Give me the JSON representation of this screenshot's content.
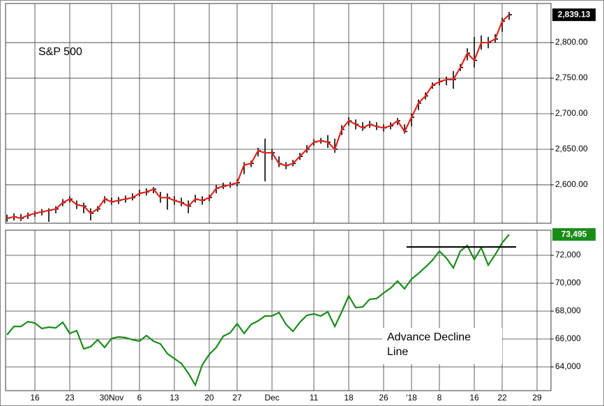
{
  "chart_data": [
    {
      "type": "ohlc",
      "annotation": "S&P 500",
      "line_color": "#e8221b",
      "bar_color": "#000000",
      "ylim": [
        2546,
        2855
      ],
      "yticks": [
        {
          "value": 2600,
          "label": "2,600.00"
        },
        {
          "value": 2650,
          "label": "2,650.00"
        },
        {
          "value": 2700,
          "label": "2,700.00"
        },
        {
          "value": 2750,
          "label": "2,750.00"
        },
        {
          "value": 2800,
          "label": "2,800.00"
        }
      ],
      "last_value_label": "2,839.13",
      "close": [
        2553,
        2555,
        2553,
        2557,
        2560,
        2562,
        2564,
        2566,
        2575,
        2580,
        2572,
        2570,
        2560,
        2566,
        2580,
        2576,
        2578,
        2580,
        2582,
        2588,
        2590,
        2594,
        2582,
        2582,
        2578,
        2575,
        2570,
        2580,
        2578,
        2582,
        2595,
        2598,
        2600,
        2603,
        2628,
        2630,
        2648,
        2645,
        2645,
        2630,
        2627,
        2630,
        2640,
        2650,
        2660,
        2662,
        2660,
        2650,
        2678,
        2690,
        2685,
        2680,
        2685,
        2682,
        2680,
        2683,
        2690,
        2675,
        2695,
        2715,
        2725,
        2740,
        2745,
        2748,
        2748,
        2765,
        2785,
        2775,
        2800,
        2800,
        2805,
        2830,
        2839.13
      ],
      "high": [
        2558,
        2560,
        2559,
        2561,
        2563,
        2566,
        2567,
        2570,
        2580,
        2584,
        2578,
        2575,
        2567,
        2570,
        2584,
        2582,
        2583,
        2585,
        2588,
        2593,
        2595,
        2597,
        2590,
        2588,
        2584,
        2582,
        2578,
        2586,
        2584,
        2586,
        2600,
        2603,
        2604,
        2608,
        2632,
        2634,
        2652,
        2665,
        2650,
        2640,
        2632,
        2635,
        2645,
        2656,
        2664,
        2666,
        2670,
        2665,
        2684,
        2695,
        2692,
        2688,
        2690,
        2688,
        2685,
        2688,
        2694,
        2685,
        2700,
        2720,
        2730,
        2744,
        2750,
        2752,
        2760,
        2770,
        2792,
        2808,
        2810,
        2808,
        2812,
        2835,
        2843
      ],
      "low": [
        2548,
        2550,
        2549,
        2552,
        2555,
        2557,
        2548,
        2560,
        2570,
        2575,
        2566,
        2560,
        2550,
        2562,
        2574,
        2572,
        2573,
        2575,
        2578,
        2584,
        2585,
        2588,
        2575,
        2565,
        2572,
        2570,
        2560,
        2575,
        2572,
        2577,
        2588,
        2594,
        2596,
        2598,
        2615,
        2625,
        2640,
        2605,
        2635,
        2625,
        2622,
        2626,
        2635,
        2645,
        2655,
        2658,
        2652,
        2645,
        2670,
        2683,
        2678,
        2676,
        2680,
        2677,
        2675,
        2678,
        2684,
        2672,
        2682,
        2705,
        2720,
        2735,
        2740,
        2740,
        2735,
        2760,
        2775,
        2765,
        2790,
        2792,
        2800,
        2815,
        2832
      ]
    },
    {
      "type": "line",
      "annotation": [
        "Advance Decline",
        "Line"
      ],
      "color": "#1a8c1a",
      "ylim": [
        62300,
        73800
      ],
      "yticks": [
        {
          "value": 64000,
          "label": "64,000"
        },
        {
          "value": 66000,
          "label": "66,000"
        },
        {
          "value": 68000,
          "label": "68,000"
        },
        {
          "value": 70000,
          "label": "70,000"
        },
        {
          "value": 72000,
          "label": "72,000"
        }
      ],
      "last_value_label": "73,495",
      "xlim": [
        -0.2,
        78
      ],
      "xticks": [
        {
          "value": 4,
          "label": "16"
        },
        {
          "value": 9,
          "label": "23"
        },
        {
          "value": 15,
          "label": "30Nov"
        },
        {
          "value": 19,
          "label": "6"
        },
        {
          "value": 24,
          "label": "13"
        },
        {
          "value": 29,
          "label": "20"
        },
        {
          "value": 33,
          "label": "27"
        },
        {
          "value": 38,
          "label": "Dec"
        },
        {
          "value": 44,
          "label": "11"
        },
        {
          "value": 49,
          "label": "18"
        },
        {
          "value": 54,
          "label": "26"
        },
        {
          "value": 58,
          "label": "'18"
        },
        {
          "value": 62,
          "label": "8"
        },
        {
          "value": 67,
          "label": "16"
        },
        {
          "value": 71,
          "label": "22"
        },
        {
          "value": 76,
          "label": "29"
        }
      ],
      "values": [
        66300,
        66900,
        66900,
        67250,
        67150,
        66750,
        66850,
        66800,
        67200,
        66400,
        66600,
        65300,
        65450,
        65950,
        65400,
        66050,
        66150,
        66100,
        65950,
        65850,
        66250,
        65850,
        65650,
        64950,
        64600,
        64250,
        63550,
        62700,
        64150,
        64900,
        65400,
        66200,
        66450,
        67100,
        66400,
        67050,
        67300,
        67650,
        67650,
        67900,
        67050,
        66550,
        67200,
        67700,
        67800,
        67650,
        67950,
        66900,
        67950,
        69100,
        68250,
        68300,
        68850,
        68900,
        69300,
        69650,
        70150,
        69600,
        70300,
        70700,
        71150,
        71650,
        72300,
        71800,
        71100,
        72300,
        72700,
        71700,
        72550,
        71300,
        72050,
        72900,
        73495
      ],
      "trendline": {
        "x": [
          57.3,
          73
        ],
        "y": 72600
      }
    }
  ]
}
